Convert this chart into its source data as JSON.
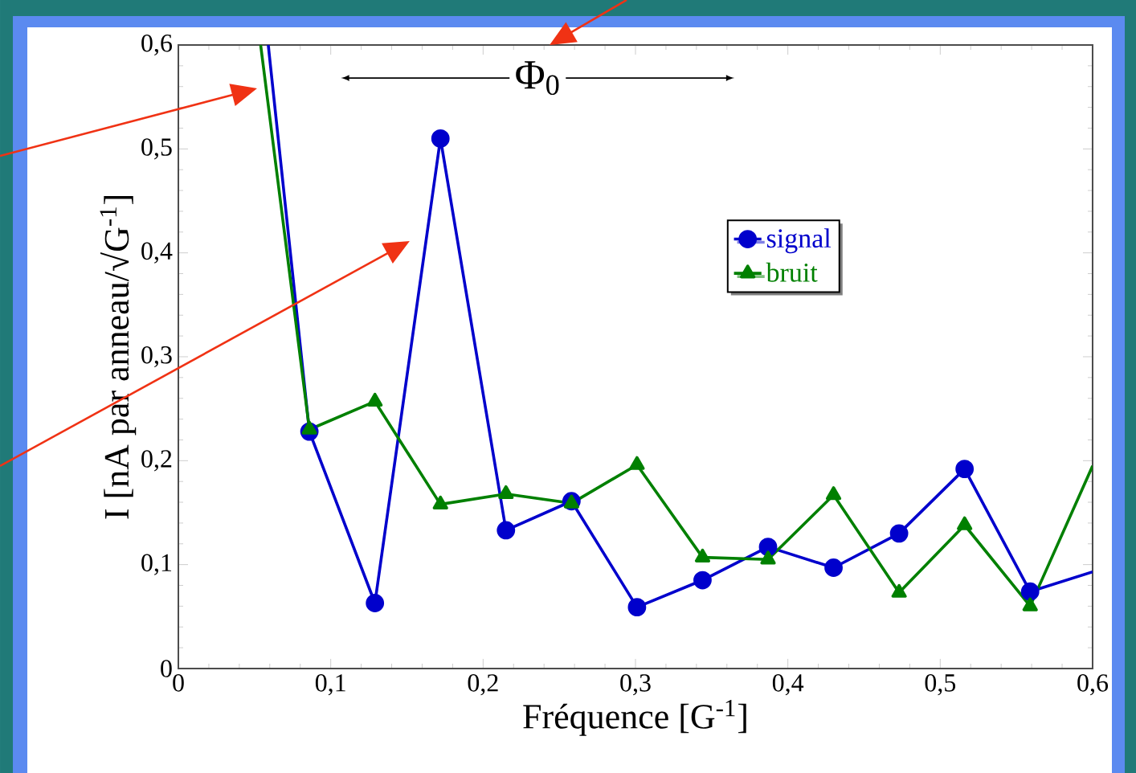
{
  "chart_data": {
    "type": "line",
    "xlabel": "Fréquence [G$^{-1}$]",
    "ylabel": "I [nA par anneau/√G$^{-1}$]",
    "xlim": [
      0,
      0.6
    ],
    "ylim": [
      0,
      0.6
    ],
    "xticks": [
      0,
      {
        "value": 0.1,
        "label": "0,1"
      },
      {
        "value": 0.2,
        "label": "0,2"
      },
      {
        "value": 0.3,
        "label": "0,3"
      },
      {
        "value": 0.4,
        "label": "0,4"
      },
      {
        "value": 0.5,
        "label": "0,5"
      },
      {
        "value": 0.6,
        "label": "0,6"
      }
    ],
    "yticks": [
      0,
      {
        "value": 0.1,
        "label": "0,1"
      },
      {
        "value": 0.2,
        "label": "0,2"
      },
      {
        "value": 0.3,
        "label": "0,3"
      },
      {
        "value": 0.4,
        "label": "0,4"
      },
      {
        "value": 0.5,
        "label": "0,5"
      },
      {
        "value": 0.6,
        "label": "0,6"
      }
    ],
    "legend": "top",
    "grid": false,
    "annotations": [
      "Φ$_{0}$"
    ],
    "series": [
      {
        "name": "signal",
        "color": "#0000cc",
        "marker": "circle",
        "x": [
          0.059,
          0.086,
          0.129,
          0.172,
          0.215,
          0.258,
          0.301,
          0.344,
          0.387,
          0.43,
          0.473,
          0.516,
          0.559,
          0.6
        ],
        "values": [
          0.6,
          0.228,
          0.063,
          0.51,
          0.133,
          0.161,
          0.059,
          0.085,
          0.117,
          0.097,
          0.13,
          0.192,
          0.074,
          0.093
        ]
      },
      {
        "name": "bruit",
        "color": "#008000",
        "marker": "triangle",
        "x": [
          0.054,
          0.086,
          0.129,
          0.172,
          0.215,
          0.258,
          0.301,
          0.344,
          0.387,
          0.43,
          0.473,
          0.516,
          0.559,
          0.6
        ],
        "values": [
          0.6,
          0.23,
          0.257,
          0.158,
          0.168,
          0.159,
          0.196,
          0.107,
          0.105,
          0.167,
          0.073,
          0.138,
          0.06,
          0.195
        ]
      }
    ]
  }
}
